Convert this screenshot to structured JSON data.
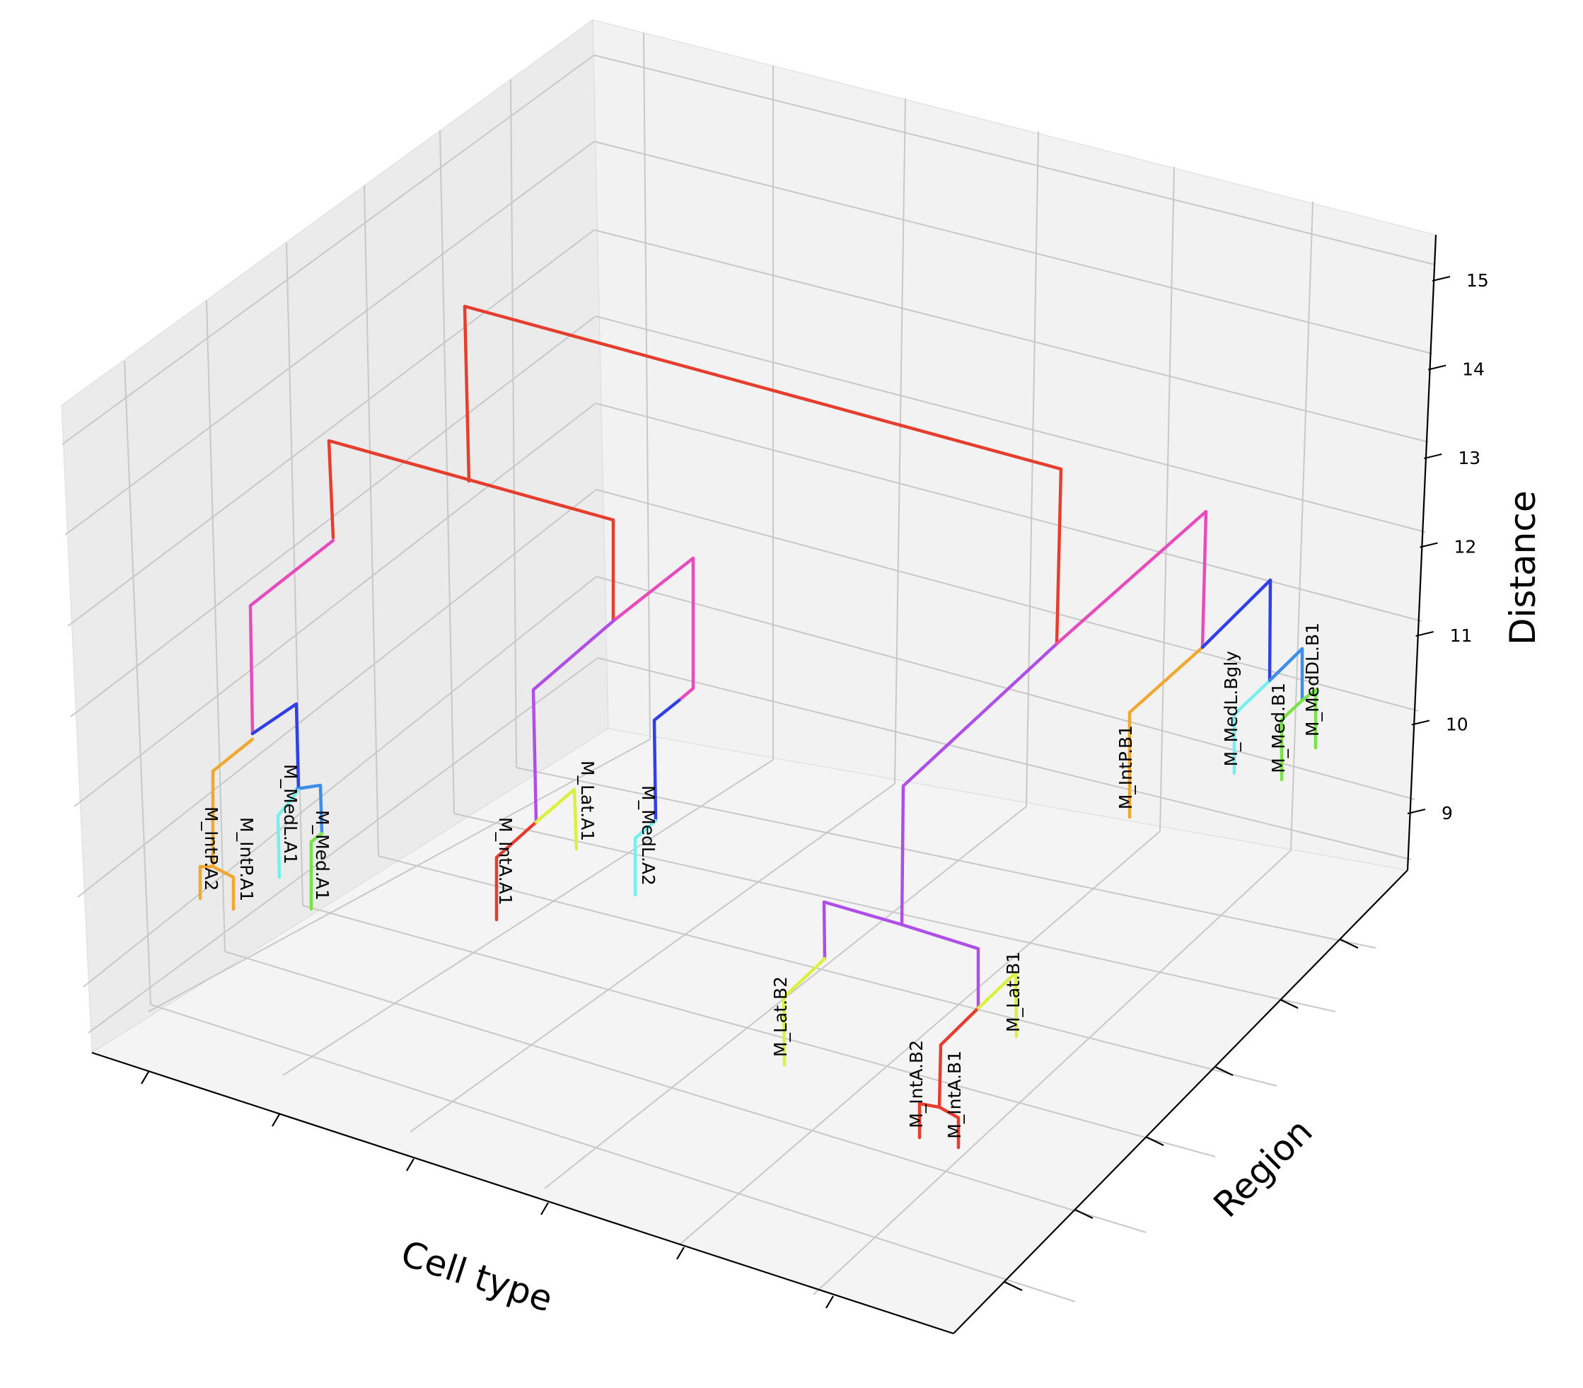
{
  "chart_data": {
    "type": "3d-dendrogram",
    "title": "",
    "xlabel": "Cell type",
    "ylabel": "Region",
    "zlabel": "Distance",
    "zlim": [
      8.2,
      15.3
    ],
    "zticks": [
      9,
      10,
      11,
      12,
      13,
      14,
      15
    ],
    "leaves": [
      {
        "name": "M_IntP.A2",
        "height": 9.5,
        "color": "#f0a830"
      },
      {
        "name": "M_IntP.A1",
        "height": 9.5,
        "color": "#f0a830"
      },
      {
        "name": "M_MedL.A1",
        "height": 9.6,
        "color": "#76f0ee"
      },
      {
        "name": "M_Med.A1",
        "height": 9.5,
        "color": "#7be34a"
      },
      {
        "name": "M_IntA.A1",
        "height": 9.2,
        "color": "#e53e2e"
      },
      {
        "name": "M_Lat.A1",
        "height": 9.8,
        "color": "#dcf03e"
      },
      {
        "name": "M_MedL.A2",
        "height": 9.6,
        "color": "#76f0ee"
      },
      {
        "name": "M_Lat.B2",
        "height": 9.4,
        "color": "#dcf03e"
      },
      {
        "name": "M_IntA.B2",
        "height": 9.0,
        "color": "#e53e2e"
      },
      {
        "name": "M_IntA.B1",
        "height": 9.0,
        "color": "#e53e2e"
      },
      {
        "name": "M_Lat.B1",
        "height": 9.5,
        "color": "#dcf03e"
      },
      {
        "name": "M_IntP.B1",
        "height": 9.0,
        "color": "#f0a830"
      },
      {
        "name": "M_MedL.Bgly",
        "height": 9.4,
        "color": "#76f0ee"
      },
      {
        "name": "M_Med.B1",
        "height": 9.4,
        "color": "#7be34a"
      },
      {
        "name": "M_MedDL.B1",
        "height": 9.7,
        "color": "#7be34a"
      }
    ],
    "branch_colors": {
      "root": "#e53e2e",
      "pink": "#e84cbc",
      "purple": "#b04ee8",
      "blue": "#3040e8",
      "light_blue": "#3d8ee8"
    }
  }
}
